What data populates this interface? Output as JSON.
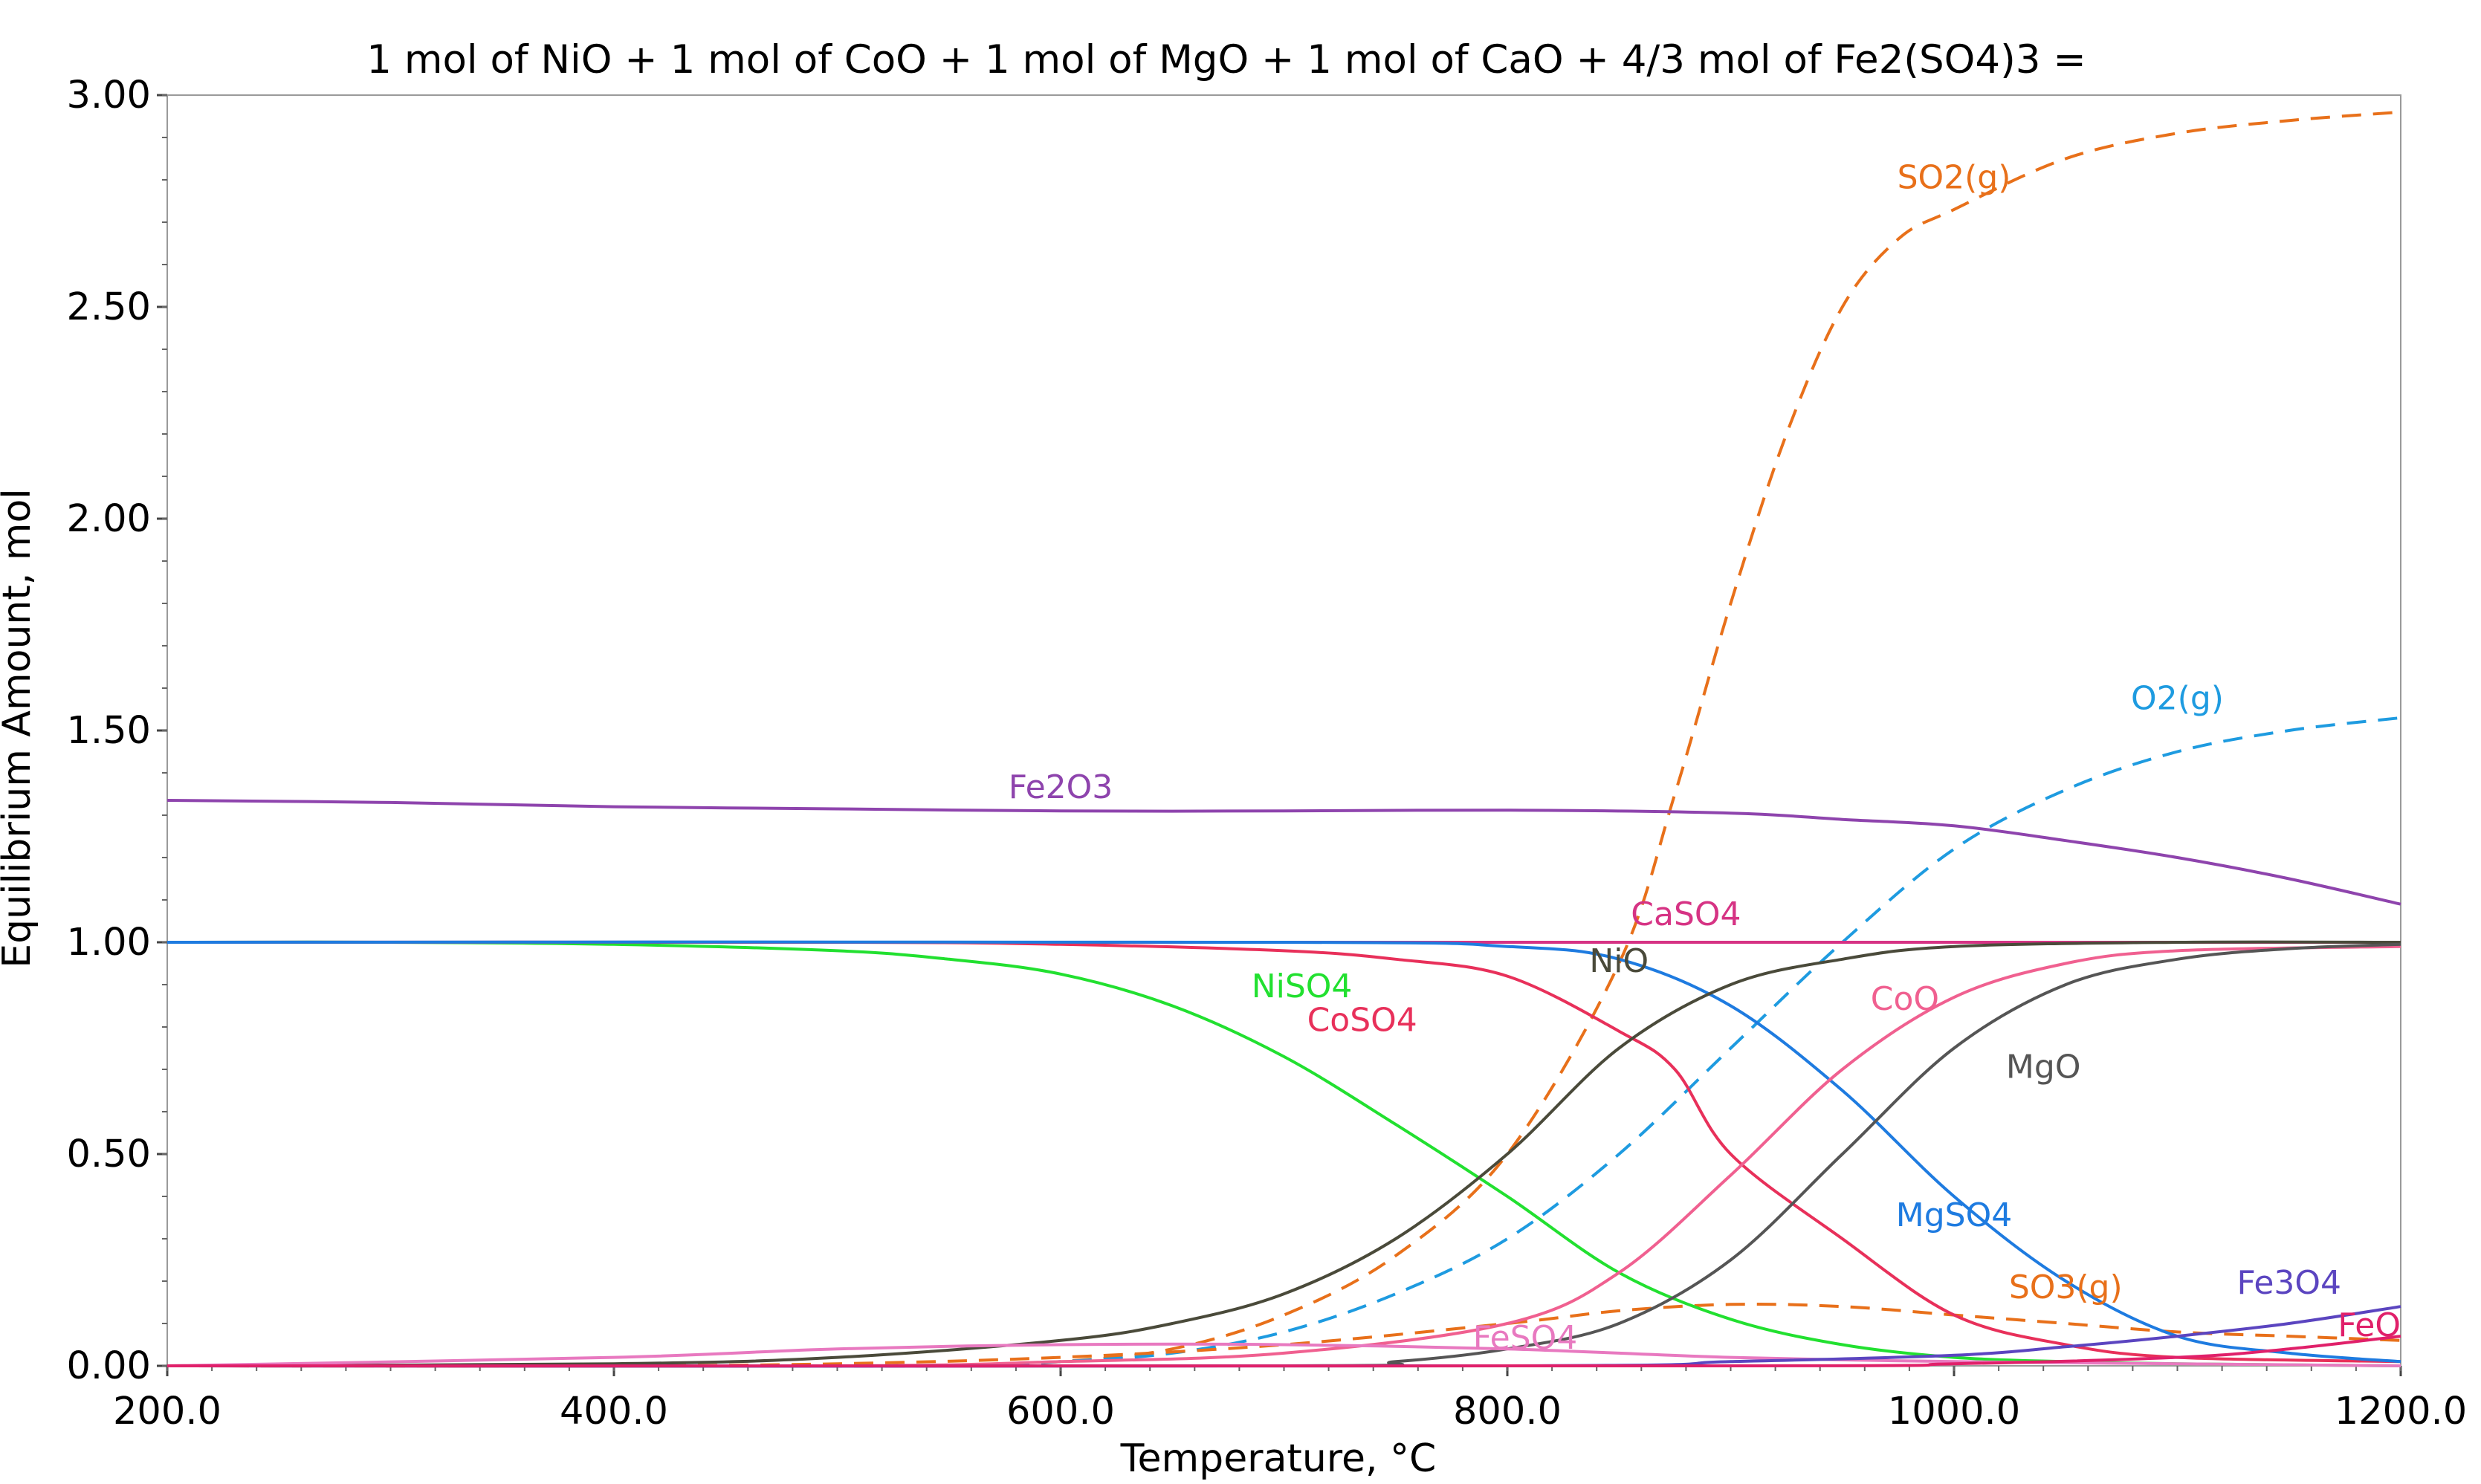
{
  "chart_data": {
    "type": "line",
    "title": "1 mol of NiO + 1 mol of CoO + 1 mol of MgO + 1 mol of CaO + 4/3 mol of Fe2(SO4)3 =",
    "xlabel": "Temperature, °C",
    "ylabel": "Equilibrium Amount, mol",
    "xlim": [
      200,
      1200
    ],
    "ylim": [
      0,
      3
    ],
    "x_ticks": [
      "200.0",
      "400.0",
      "600.0",
      "800.0",
      "1000.0",
      "1200.0"
    ],
    "y_ticks": [
      "0.00",
      "0.50",
      "1.00",
      "1.50",
      "2.00",
      "2.50",
      "3.00"
    ],
    "x_tick_values": [
      200,
      400,
      600,
      800,
      1000,
      1200
    ],
    "y_tick_values": [
      0,
      0.5,
      1,
      1.5,
      2,
      2.5,
      3
    ],
    "grid": false,
    "series": [
      {
        "name": "SO2(g)",
        "color": "#E8701A",
        "dash": true,
        "label_at": [
          1000,
          2.78
        ],
        "points": [
          [
            200,
            0
          ],
          [
            400,
            0
          ],
          [
            550,
            0
          ],
          [
            600,
            0.01
          ],
          [
            650,
            0.04
          ],
          [
            700,
            0.12
          ],
          [
            750,
            0.26
          ],
          [
            800,
            0.5
          ],
          [
            850,
            0.95
          ],
          [
            875,
            1.35
          ],
          [
            900,
            1.8
          ],
          [
            925,
            2.2
          ],
          [
            950,
            2.5
          ],
          [
            975,
            2.66
          ],
          [
            1000,
            2.73
          ],
          [
            1050,
            2.85
          ],
          [
            1100,
            2.91
          ],
          [
            1150,
            2.94
          ],
          [
            1200,
            2.96
          ]
        ]
      },
      {
        "name": "O2(g)",
        "color": "#1E9BE0",
        "dash": true,
        "label_at": [
          1100,
          1.55
        ],
        "points": [
          [
            200,
            0
          ],
          [
            400,
            0
          ],
          [
            550,
            0
          ],
          [
            600,
            0.01
          ],
          [
            650,
            0.03
          ],
          [
            700,
            0.08
          ],
          [
            750,
            0.17
          ],
          [
            800,
            0.3
          ],
          [
            850,
            0.5
          ],
          [
            900,
            0.75
          ],
          [
            950,
            1.0
          ],
          [
            1000,
            1.22
          ],
          [
            1050,
            1.36
          ],
          [
            1100,
            1.45
          ],
          [
            1150,
            1.5
          ],
          [
            1200,
            1.53
          ]
        ]
      },
      {
        "name": "SO3(g)",
        "color": "#E8701A",
        "dash": true,
        "label_at": [
          1050,
          0.16
        ],
        "points": [
          [
            200,
            0
          ],
          [
            400,
            0
          ],
          [
            500,
            0.005
          ],
          [
            600,
            0.02
          ],
          [
            700,
            0.05
          ],
          [
            800,
            0.1
          ],
          [
            850,
            0.13
          ],
          [
            900,
            0.145
          ],
          [
            950,
            0.14
          ],
          [
            1000,
            0.12
          ],
          [
            1050,
            0.1
          ],
          [
            1100,
            0.08
          ],
          [
            1150,
            0.07
          ],
          [
            1200,
            0.06
          ]
        ]
      },
      {
        "name": "Fe2O3",
        "color": "#8E44AD",
        "dash": false,
        "label_at": [
          600,
          1.34
        ],
        "points": [
          [
            200,
            1.335
          ],
          [
            300,
            1.33
          ],
          [
            400,
            1.32
          ],
          [
            500,
            1.315
          ],
          [
            600,
            1.31
          ],
          [
            700,
            1.31
          ],
          [
            800,
            1.312
          ],
          [
            900,
            1.305
          ],
          [
            950,
            1.29
          ],
          [
            1000,
            1.275
          ],
          [
            1050,
            1.24
          ],
          [
            1100,
            1.2
          ],
          [
            1150,
            1.15
          ],
          [
            1200,
            1.09
          ]
        ]
      },
      {
        "name": "CaSO4",
        "color": "#D63384",
        "dash": false,
        "label_at": [
          880,
          1.04
        ],
        "points": [
          [
            200,
            1.0
          ],
          [
            1200,
            1.0
          ]
        ]
      },
      {
        "name": "NiSO4",
        "color": "#22E030",
        "dash": false,
        "label_at": [
          708,
          0.87
        ],
        "points": [
          [
            200,
            1.0
          ],
          [
            300,
            1.0
          ],
          [
            400,
            0.995
          ],
          [
            500,
            0.98
          ],
          [
            550,
            0.96
          ],
          [
            600,
            0.925
          ],
          [
            650,
            0.85
          ],
          [
            700,
            0.73
          ],
          [
            750,
            0.57
          ],
          [
            800,
            0.4
          ],
          [
            850,
            0.22
          ],
          [
            900,
            0.11
          ],
          [
            950,
            0.05
          ],
          [
            1000,
            0.02
          ],
          [
            1050,
            0.01
          ],
          [
            1100,
            0.005
          ],
          [
            1200,
            0
          ]
        ]
      },
      {
        "name": "CoSO4",
        "color": "#E8305A",
        "dash": false,
        "label_at": [
          735,
          0.79
        ],
        "points": [
          [
            200,
            1.0
          ],
          [
            500,
            1.0
          ],
          [
            600,
            0.995
          ],
          [
            700,
            0.98
          ],
          [
            750,
            0.96
          ],
          [
            800,
            0.92
          ],
          [
            850,
            0.79
          ],
          [
            875,
            0.7
          ],
          [
            900,
            0.5
          ],
          [
            950,
            0.3
          ],
          [
            1000,
            0.12
          ],
          [
            1050,
            0.05
          ],
          [
            1100,
            0.02
          ],
          [
            1200,
            0.01
          ]
        ]
      },
      {
        "name": "MgSO4",
        "color": "#1E7BE0",
        "dash": false,
        "label_at": [
          1000,
          0.33
        ],
        "points": [
          [
            200,
            1.0
          ],
          [
            700,
            1.0
          ],
          [
            800,
            0.99
          ],
          [
            850,
            0.96
          ],
          [
            900,
            0.85
          ],
          [
            950,
            0.65
          ],
          [
            1000,
            0.4
          ],
          [
            1050,
            0.2
          ],
          [
            1100,
            0.07
          ],
          [
            1150,
            0.03
          ],
          [
            1200,
            0.01
          ]
        ]
      },
      {
        "name": "NiO",
        "color": "#4A4A3A",
        "dash": false,
        "label_at": [
          850,
          0.93
        ],
        "points": [
          [
            200,
            0
          ],
          [
            400,
            0.005
          ],
          [
            500,
            0.02
          ],
          [
            600,
            0.06
          ],
          [
            650,
            0.1
          ],
          [
            700,
            0.17
          ],
          [
            750,
            0.3
          ],
          [
            800,
            0.5
          ],
          [
            850,
            0.75
          ],
          [
            900,
            0.9
          ],
          [
            950,
            0.96
          ],
          [
            1000,
            0.99
          ],
          [
            1100,
            1.0
          ],
          [
            1200,
            1.0
          ]
        ]
      },
      {
        "name": "CoO",
        "color": "#F06090",
        "dash": false,
        "label_at": [
          978,
          0.84
        ],
        "points": [
          [
            200,
            0
          ],
          [
            500,
            0
          ],
          [
            600,
            0.01
          ],
          [
            700,
            0.03
          ],
          [
            800,
            0.1
          ],
          [
            850,
            0.22
          ],
          [
            900,
            0.45
          ],
          [
            950,
            0.7
          ],
          [
            1000,
            0.87
          ],
          [
            1050,
            0.95
          ],
          [
            1100,
            0.98
          ],
          [
            1200,
            0.99
          ]
        ]
      },
      {
        "name": "MgO",
        "color": "#555555",
        "dash": false,
        "label_at": [
          1040,
          0.68
        ],
        "points": [
          [
            200,
            0
          ],
          [
            700,
            0
          ],
          [
            750,
            0.01
          ],
          [
            800,
            0.04
          ],
          [
            850,
            0.1
          ],
          [
            900,
            0.25
          ],
          [
            950,
            0.5
          ],
          [
            1000,
            0.75
          ],
          [
            1050,
            0.9
          ],
          [
            1100,
            0.96
          ],
          [
            1150,
            0.985
          ],
          [
            1200,
            0.995
          ]
        ]
      },
      {
        "name": "FeSO4",
        "color": "#E879C0",
        "dash": false,
        "label_at": [
          808,
          0.04
        ],
        "points": [
          [
            200,
            0
          ],
          [
            400,
            0.02
          ],
          [
            500,
            0.04
          ],
          [
            600,
            0.05
          ],
          [
            700,
            0.05
          ],
          [
            800,
            0.04
          ],
          [
            900,
            0.02
          ],
          [
            1000,
            0.01
          ],
          [
            1100,
            0.005
          ],
          [
            1200,
            0
          ]
        ]
      },
      {
        "name": "Fe3O4",
        "color": "#5B45C0",
        "dash": false,
        "label_at": [
          1150,
          0.17
        ],
        "points": [
          [
            200,
            0
          ],
          [
            800,
            0
          ],
          [
            900,
            0.01
          ],
          [
            1000,
            0.025
          ],
          [
            1050,
            0.045
          ],
          [
            1100,
            0.07
          ],
          [
            1150,
            0.1
          ],
          [
            1200,
            0.14
          ]
        ]
      },
      {
        "name": "FeO",
        "color": "#E0206A",
        "dash": false,
        "label_at": [
          1200,
          0.07
        ],
        "points": [
          [
            200,
            0
          ],
          [
            900,
            0
          ],
          [
            1000,
            0.005
          ],
          [
            1100,
            0.02
          ],
          [
            1150,
            0.04
          ],
          [
            1200,
            0.07
          ]
        ]
      }
    ]
  }
}
